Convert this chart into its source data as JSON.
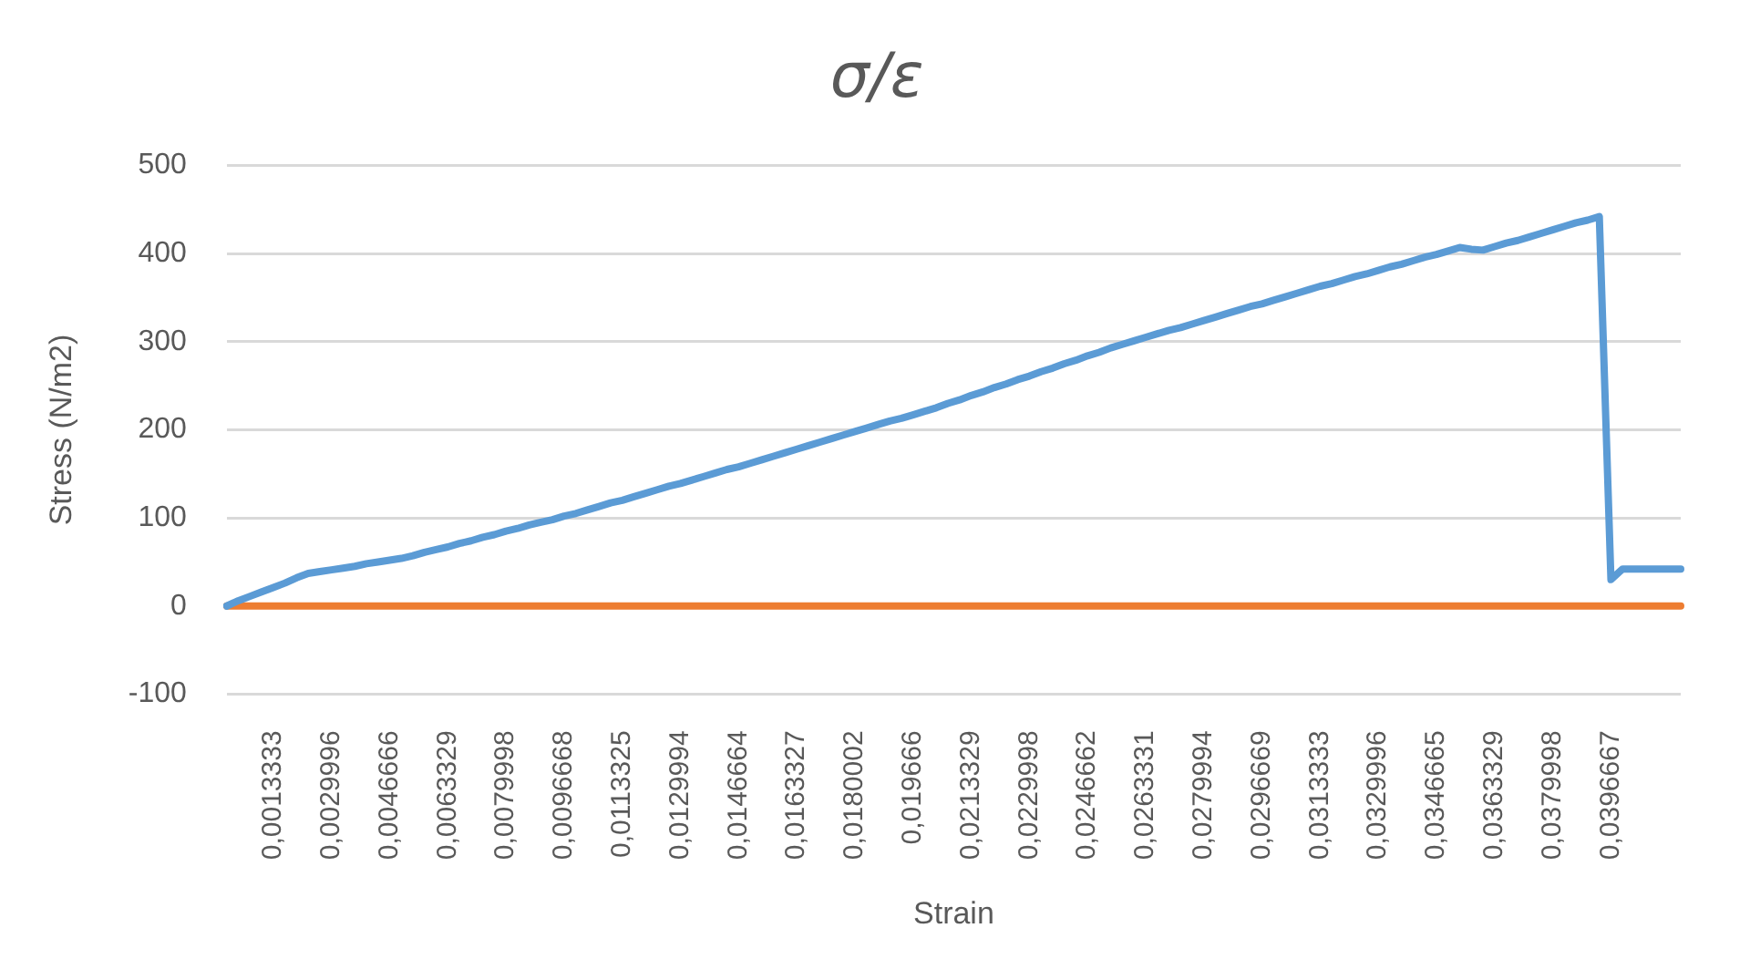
{
  "chart_data": {
    "type": "line",
    "title": "σ/ε",
    "xlabel": "Strain",
    "ylabel": "Stress (N/m2)",
    "categories": [
      null,
      null,
      null,
      null,
      "0,0013333",
      null,
      null,
      null,
      null,
      "0,0029996",
      null,
      null,
      null,
      null,
      "0,0046666",
      null,
      null,
      null,
      null,
      "0,0063329",
      null,
      null,
      null,
      null,
      "0,0079998",
      null,
      null,
      null,
      null,
      "0,0096668",
      null,
      null,
      null,
      null,
      "0,0113325",
      null,
      null,
      null,
      null,
      "0,0129994",
      null,
      null,
      null,
      null,
      "0,0146664",
      null,
      null,
      null,
      null,
      "0,0163327",
      null,
      null,
      null,
      null,
      "0,0180002",
      null,
      null,
      null,
      null,
      "0,019666",
      null,
      null,
      null,
      null,
      "0,0213329",
      null,
      null,
      null,
      null,
      "0,0229998",
      null,
      null,
      null,
      null,
      "0,0246662",
      null,
      null,
      null,
      null,
      "0,0263331",
      null,
      null,
      null,
      null,
      "0,0279994",
      null,
      null,
      null,
      null,
      "0,0296669",
      null,
      null,
      null,
      null,
      "0,0313333",
      null,
      null,
      null,
      null,
      "0,0329996",
      null,
      null,
      null,
      null,
      "0,0346665",
      null,
      null,
      null,
      null,
      "0,0363329",
      null,
      null,
      null,
      null,
      "0,0379998",
      null,
      null,
      null,
      null,
      "0,0396667",
      null,
      null,
      null,
      null,
      null,
      null
    ],
    "series": [
      {
        "color": "#5b9bd5",
        "values": [
          0,
          6,
          11,
          16,
          21,
          26,
          32,
          37,
          39,
          41,
          43,
          45,
          48,
          50,
          52,
          54,
          57,
          61,
          64,
          67,
          71,
          74,
          78,
          81,
          85,
          88,
          92,
          95,
          98,
          102,
          105,
          109,
          113,
          117,
          120,
          124,
          128,
          132,
          136,
          139,
          143,
          147,
          151,
          155,
          158,
          162,
          166,
          170,
          174,
          178,
          182,
          186,
          190,
          194,
          198,
          202,
          206,
          210,
          213,
          217,
          221,
          225,
          230,
          234,
          239,
          243,
          248,
          252,
          257,
          261,
          266,
          270,
          275,
          279,
          284,
          288,
          293,
          297,
          301,
          305,
          309,
          313,
          316,
          320,
          324,
          328,
          332,
          336,
          340,
          343,
          347,
          351,
          355,
          359,
          363,
          366,
          370,
          374,
          377,
          381,
          385,
          388,
          392,
          396,
          399,
          403,
          407,
          405,
          404,
          408,
          412,
          415,
          419,
          423,
          427,
          431,
          435,
          438,
          442,
          30,
          42,
          42,
          42,
          42,
          42,
          42
        ]
      },
      {
        "color": "#ed7d31",
        "values": [
          0,
          0,
          0,
          0,
          0,
          0,
          0,
          0,
          0,
          0,
          0,
          0,
          0,
          0,
          0,
          0,
          0,
          0,
          0,
          0,
          0,
          0,
          0,
          0,
          0,
          0,
          0,
          0,
          0,
          0,
          0,
          0,
          0,
          0,
          0,
          0,
          0,
          0,
          0,
          0,
          0,
          0,
          0,
          0,
          0,
          0,
          0,
          0,
          0,
          0,
          0,
          0,
          0,
          0,
          0,
          0,
          0,
          0,
          0,
          0,
          0,
          0,
          0,
          0,
          0,
          0,
          0,
          0,
          0,
          0,
          0,
          0,
          0,
          0,
          0,
          0,
          0,
          0,
          0,
          0,
          0,
          0,
          0,
          0,
          0,
          0,
          0,
          0,
          0,
          0,
          0,
          0,
          0,
          0,
          0,
          0,
          0,
          0,
          0,
          0,
          0,
          0,
          0,
          0,
          0,
          0,
          0,
          0,
          0,
          0,
          0,
          0,
          0,
          0,
          0,
          0,
          0,
          0,
          0,
          0,
          0,
          0,
          0,
          0,
          0,
          0
        ]
      }
    ],
    "ylim": [
      -100,
      500
    ],
    "yticks": [
      -100,
      0,
      100,
      200,
      300,
      400,
      500
    ],
    "grid": "y",
    "legend": false,
    "marker": "none",
    "line_style": "solid"
  }
}
